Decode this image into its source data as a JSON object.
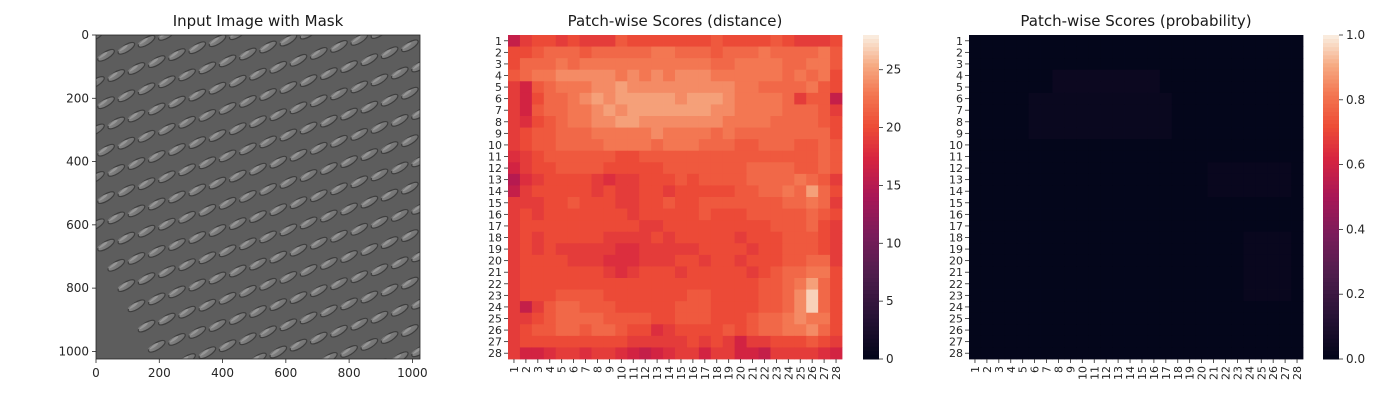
{
  "chart_data": [
    {
      "type": "image",
      "title": "Input Image with Mask",
      "description_text": "",
      "x_ticks": [
        "0",
        "200",
        "400",
        "600",
        "800",
        "1000"
      ],
      "x_tick_values": [
        0,
        200,
        400,
        600,
        800,
        1000
      ],
      "y_ticks": [
        "0",
        "200",
        "400",
        "600",
        "800",
        "1000"
      ],
      "y_tick_values": [
        0,
        200,
        400,
        600,
        800,
        1000
      ],
      "xlim": [
        0,
        1024
      ],
      "ylim": [
        1024,
        0
      ],
      "colormap": "gray",
      "grid": false
    },
    {
      "type": "heatmap",
      "title": "Patch-wise Scores (distance)",
      "rows": [
        "1",
        "2",
        "3",
        "4",
        "5",
        "6",
        "7",
        "8",
        "9",
        "10",
        "11",
        "12",
        "13",
        "14",
        "15",
        "16",
        "17",
        "18",
        "19",
        "20",
        "21",
        "22",
        "23",
        "24",
        "25",
        "26",
        "27",
        "28"
      ],
      "cols": [
        "1",
        "2",
        "3",
        "4",
        "5",
        "6",
        "7",
        "8",
        "9",
        "10",
        "11",
        "12",
        "13",
        "14",
        "15",
        "16",
        "17",
        "18",
        "19",
        "20",
        "21",
        "22",
        "23",
        "24",
        "25",
        "26",
        "27",
        "28"
      ],
      "colorbar_ticks": [
        "0",
        "5",
        "10",
        "15",
        "20",
        "25"
      ],
      "colorbar_tick_values": [
        0,
        5,
        10,
        15,
        20,
        25
      ],
      "vmin": 0,
      "vmax": 28,
      "colormap": "rocket",
      "legend": "colorbar-right",
      "values": [
        [
          16,
          19,
          20,
          20,
          19,
          20,
          19,
          19,
          19,
          21,
          20,
          20,
          20,
          20,
          20,
          20,
          20,
          21,
          20,
          20,
          20,
          20,
          21,
          20,
          19,
          19,
          19,
          20
        ],
        [
          20,
          20,
          21,
          22,
          22,
          22,
          21,
          22,
          22,
          22,
          22,
          22,
          23,
          23,
          22,
          22,
          22,
          21,
          22,
          22,
          22,
          23,
          22,
          22,
          22,
          22,
          23,
          21
        ],
        [
          20,
          22,
          22,
          22,
          23,
          22,
          23,
          23,
          23,
          23,
          23,
          23,
          23,
          23,
          23,
          23,
          23,
          22,
          22,
          23,
          23,
          23,
          23,
          22,
          22,
          23,
          23,
          21
        ],
        [
          21,
          22,
          23,
          23,
          24,
          24,
          24,
          24,
          24,
          23,
          24,
          23,
          24,
          23,
          24,
          24,
          24,
          23,
          23,
          23,
          23,
          23,
          23,
          22,
          23,
          22,
          23,
          20
        ],
        [
          19,
          17,
          21,
          22,
          23,
          23,
          23,
          24,
          24,
          25,
          24,
          24,
          24,
          24,
          24,
          24,
          24,
          24,
          24,
          23,
          23,
          22,
          22,
          22,
          22,
          23,
          21,
          20
        ],
        [
          19,
          17,
          20,
          22,
          22,
          23,
          24,
          25,
          24,
          25,
          25,
          25,
          25,
          25,
          24,
          25,
          25,
          25,
          24,
          23,
          23,
          23,
          23,
          22,
          19,
          21,
          21,
          16
        ],
        [
          19,
          17,
          21,
          22,
          22,
          23,
          23,
          24,
          25,
          24,
          25,
          25,
          25,
          25,
          25,
          25,
          25,
          24,
          24,
          23,
          23,
          23,
          23,
          22,
          22,
          22,
          21,
          19
        ],
        [
          19,
          18,
          20,
          21,
          22,
          23,
          23,
          24,
          24,
          25,
          25,
          24,
          24,
          24,
          24,
          24,
          24,
          24,
          23,
          23,
          23,
          23,
          22,
          22,
          22,
          22,
          21,
          20
        ],
        [
          19,
          20,
          21,
          21,
          22,
          22,
          22,
          23,
          23,
          23,
          23,
          23,
          24,
          23,
          23,
          23,
          23,
          22,
          23,
          22,
          22,
          22,
          22,
          22,
          22,
          22,
          22,
          20
        ],
        [
          19,
          20,
          21,
          21,
          22,
          22,
          22,
          22,
          23,
          23,
          23,
          23,
          22,
          23,
          23,
          23,
          22,
          22,
          22,
          21,
          21,
          22,
          22,
          22,
          21,
          21,
          22,
          21
        ],
        [
          18,
          19,
          20,
          21,
          21,
          21,
          21,
          21,
          21,
          20,
          20,
          21,
          21,
          21,
          21,
          21,
          21,
          21,
          21,
          21,
          21,
          21,
          21,
          21,
          21,
          21,
          22,
          21
        ],
        [
          17,
          19,
          20,
          20,
          21,
          21,
          21,
          21,
          20,
          20,
          20,
          20,
          20,
          21,
          21,
          21,
          21,
          21,
          21,
          21,
          22,
          22,
          22,
          22,
          21,
          21,
          22,
          21
        ],
        [
          15,
          18,
          19,
          20,
          20,
          20,
          20,
          19,
          18,
          19,
          19,
          20,
          20,
          20,
          21,
          20,
          21,
          21,
          21,
          21,
          22,
          22,
          22,
          22,
          23,
          22,
          21,
          19
        ],
        [
          16,
          19,
          20,
          20,
          20,
          20,
          20,
          19,
          20,
          19,
          19,
          20,
          20,
          19,
          20,
          20,
          20,
          20,
          20,
          21,
          21,
          22,
          22,
          23,
          22,
          25,
          22,
          20
        ],
        [
          19,
          19,
          19,
          20,
          20,
          21,
          20,
          20,
          20,
          19,
          19,
          20,
          20,
          21,
          20,
          20,
          21,
          21,
          21,
          21,
          21,
          21,
          21,
          22,
          22,
          23,
          22,
          19
        ],
        [
          19,
          20,
          19,
          20,
          20,
          20,
          20,
          20,
          20,
          20,
          19,
          20,
          20,
          20,
          20,
          20,
          21,
          20,
          20,
          20,
          21,
          21,
          21,
          21,
          21,
          22,
          21,
          20
        ],
        [
          19,
          20,
          20,
          20,
          20,
          20,
          20,
          20,
          20,
          20,
          20,
          19,
          19,
          20,
          20,
          20,
          20,
          20,
          20,
          20,
          20,
          20,
          21,
          21,
          21,
          22,
          20,
          19
        ],
        [
          19,
          20,
          19,
          20,
          20,
          20,
          20,
          20,
          19,
          19,
          19,
          19,
          20,
          19,
          20,
          20,
          20,
          20,
          20,
          19,
          20,
          20,
          20,
          21,
          21,
          21,
          20,
          19
        ],
        [
          19,
          20,
          19,
          20,
          19,
          19,
          19,
          19,
          19,
          18,
          18,
          19,
          19,
          19,
          19,
          19,
          20,
          20,
          20,
          20,
          19,
          20,
          20,
          21,
          21,
          21,
          20,
          19
        ],
        [
          19,
          20,
          20,
          20,
          20,
          19,
          19,
          19,
          18,
          18,
          18,
          19,
          19,
          19,
          20,
          20,
          19,
          20,
          20,
          19,
          20,
          20,
          20,
          21,
          21,
          22,
          22,
          19
        ],
        [
          19,
          20,
          20,
          20,
          20,
          20,
          20,
          20,
          19,
          18,
          19,
          20,
          20,
          20,
          19,
          20,
          20,
          20,
          20,
          20,
          19,
          20,
          21,
          22,
          22,
          23,
          23,
          20
        ],
        [
          19,
          20,
          20,
          20,
          20,
          20,
          20,
          20,
          20,
          20,
          20,
          20,
          20,
          20,
          20,
          20,
          20,
          20,
          20,
          20,
          20,
          21,
          21,
          22,
          23,
          25,
          22,
          20
        ],
        [
          19,
          20,
          20,
          20,
          21,
          21,
          21,
          21,
          20,
          20,
          20,
          20,
          20,
          20,
          20,
          21,
          21,
          20,
          20,
          20,
          20,
          21,
          21,
          22,
          24,
          27,
          22,
          20
        ],
        [
          19,
          16,
          19,
          21,
          22,
          22,
          21,
          21,
          21,
          20,
          20,
          20,
          20,
          20,
          21,
          21,
          21,
          20,
          20,
          20,
          20,
          21,
          21,
          22,
          24,
          27,
          22,
          20
        ],
        [
          19,
          19,
          20,
          21,
          22,
          22,
          22,
          22,
          21,
          21,
          21,
          21,
          20,
          20,
          21,
          21,
          21,
          20,
          20,
          20,
          21,
          22,
          22,
          23,
          24,
          23,
          23,
          20
        ],
        [
          19,
          20,
          21,
          21,
          22,
          22,
          21,
          22,
          22,
          21,
          20,
          20,
          18,
          19,
          20,
          20,
          20,
          20,
          21,
          20,
          21,
          22,
          22,
          23,
          23,
          24,
          22,
          20
        ],
        [
          19,
          20,
          20,
          20,
          20,
          20,
          20,
          20,
          20,
          20,
          19,
          19,
          19,
          19,
          19,
          20,
          19,
          20,
          19,
          17,
          19,
          19,
          20,
          20,
          20,
          21,
          20,
          19
        ],
        [
          19,
          17,
          17,
          18,
          19,
          19,
          18,
          19,
          19,
          18,
          17,
          16,
          17,
          18,
          19,
          19,
          17,
          19,
          19,
          17,
          17,
          16,
          19,
          19,
          19,
          19,
          18,
          17
        ]
      ]
    },
    {
      "type": "heatmap",
      "title": "Patch-wise Scores (probability)",
      "rows": [
        "1",
        "2",
        "3",
        "4",
        "5",
        "6",
        "7",
        "8",
        "9",
        "10",
        "11",
        "12",
        "13",
        "14",
        "15",
        "16",
        "17",
        "18",
        "19",
        "20",
        "21",
        "22",
        "23",
        "24",
        "25",
        "26",
        "27",
        "28"
      ],
      "cols": [
        "1",
        "2",
        "3",
        "4",
        "5",
        "6",
        "7",
        "8",
        "9",
        "10",
        "11",
        "12",
        "13",
        "14",
        "15",
        "16",
        "17",
        "18",
        "19",
        "20",
        "21",
        "22",
        "23",
        "24",
        "25",
        "26",
        "27",
        "28"
      ],
      "colorbar_ticks": [
        "0.0",
        "0.2",
        "0.4",
        "0.6",
        "0.8",
        "1.0"
      ],
      "colorbar_tick_values": [
        0,
        0.2,
        0.4,
        0.6,
        0.8,
        1.0
      ],
      "vmin": 0,
      "vmax": 1,
      "colormap": "rocket",
      "legend": "colorbar-right",
      "hot_regions": [
        {
          "rows": [
            4,
            5
          ],
          "cols": [
            8,
            16
          ],
          "value": 0.03
        },
        {
          "rows": [
            6,
            9
          ],
          "cols": [
            6,
            17
          ],
          "value": 0.025
        },
        {
          "rows": [
            12,
            14
          ],
          "cols": [
            21,
            27
          ],
          "value": 0.02
        },
        {
          "rows": [
            18,
            23
          ],
          "cols": [
            24,
            27
          ],
          "value": 0.02
        }
      ],
      "base_value": 0.005
    }
  ]
}
